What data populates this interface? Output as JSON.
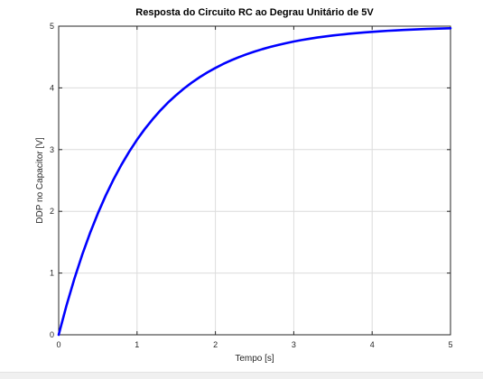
{
  "chart_data": {
    "type": "line",
    "title": "Resposta do Circuito RC ao Degrau Unitário de 5V",
    "xlabel": "Tempo [s]",
    "ylabel": "DDP no Capacitor [V]",
    "xlim": [
      0,
      5
    ],
    "ylim": [
      0,
      5
    ],
    "xticks": [
      "0",
      "1",
      "2",
      "3",
      "4",
      "5"
    ],
    "yticks": [
      "0",
      "1",
      "2",
      "3",
      "4",
      "5"
    ],
    "grid": true,
    "series": [
      {
        "color": "#0000ff",
        "x": [
          0,
          0.1,
          0.2,
          0.3,
          0.4,
          0.5,
          0.6,
          0.7,
          0.8,
          0.9,
          1.0,
          1.1,
          1.2,
          1.3,
          1.4,
          1.5,
          1.6,
          1.7,
          1.8,
          1.9,
          2.0,
          2.1,
          2.2,
          2.3,
          2.4,
          2.5,
          2.6,
          2.7,
          2.8,
          2.9,
          3.0,
          3.1,
          3.2,
          3.3,
          3.4,
          3.5,
          3.6,
          3.7,
          3.8,
          3.9,
          4.0,
          4.1,
          4.2,
          4.3,
          4.4,
          4.5,
          4.6,
          4.7,
          4.8,
          4.9,
          5.0
        ],
        "y": [
          0,
          0.476,
          0.906,
          1.296,
          1.648,
          1.967,
          2.256,
          2.517,
          2.753,
          2.967,
          3.161,
          3.336,
          3.494,
          3.638,
          3.768,
          3.884,
          3.991,
          4.087,
          4.174,
          4.252,
          4.323,
          4.388,
          4.446,
          4.498,
          4.546,
          4.589,
          4.628,
          4.663,
          4.695,
          4.724,
          4.751,
          4.775,
          4.796,
          4.816,
          4.833,
          4.849,
          4.863,
          4.876,
          4.888,
          4.899,
          4.908,
          4.917,
          4.925,
          4.932,
          4.939,
          4.944,
          4.95,
          4.955,
          4.959,
          4.963,
          4.966
        ]
      }
    ]
  }
}
